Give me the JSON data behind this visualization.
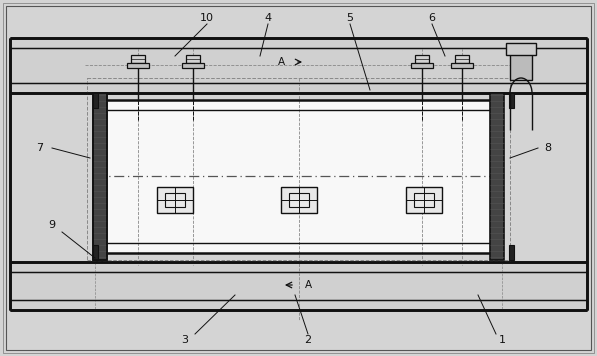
{
  "bg_color": "#d4d4d4",
  "white": "#f5f5f5",
  "light_gray": "#cccccc",
  "mid_gray": "#aaaaaa",
  "dark_gray": "#666666",
  "black": "#111111",
  "plate_color": "#c0c0c0",
  "inner_white": "#f8f8f8",
  "dashed_gray": "#888888",
  "hatching": "#999999"
}
